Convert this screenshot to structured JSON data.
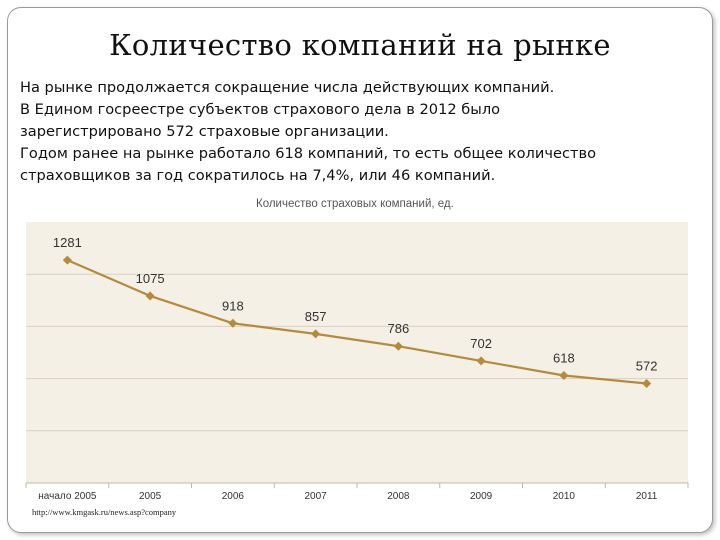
{
  "slide": {
    "title": "Количество компаний на рынке",
    "paragraph_lines": [
      "На рынке продолжается сокращение числа действующих компаний.",
      "В Едином госреестре субъектов страхового дела в 2012 было",
      "зарегистрировано 572 страховые организации.",
      "Годом ранее на рынке работало 618 компаний, то есть общее количество",
      "страховщиков за год сократилось на 7,4%, или 46 компаний."
    ],
    "source": "http://www.kmgask.ru/news.asp?company"
  },
  "colors": {
    "plot_bg": "#f5f0e6",
    "grid": "#d6d1c6",
    "line": "#b68a3a",
    "axis_text": "#333333"
  },
  "chart_data": {
    "type": "line",
    "title": "Количество страховых компаний, ед.",
    "categories": [
      "начало 2005",
      "2005",
      "2006",
      "2007",
      "2008",
      "2009",
      "2010",
      "2011"
    ],
    "values": [
      1281,
      1075,
      918,
      857,
      786,
      702,
      618,
      572
    ],
    "data_labels": [
      "1281",
      "1075",
      "918",
      "857",
      "786",
      "702",
      "618",
      "572"
    ],
    "xlabel": "",
    "ylabel": "",
    "ylim": [
      0,
      1500
    ],
    "grid": true,
    "legend": "none"
  }
}
